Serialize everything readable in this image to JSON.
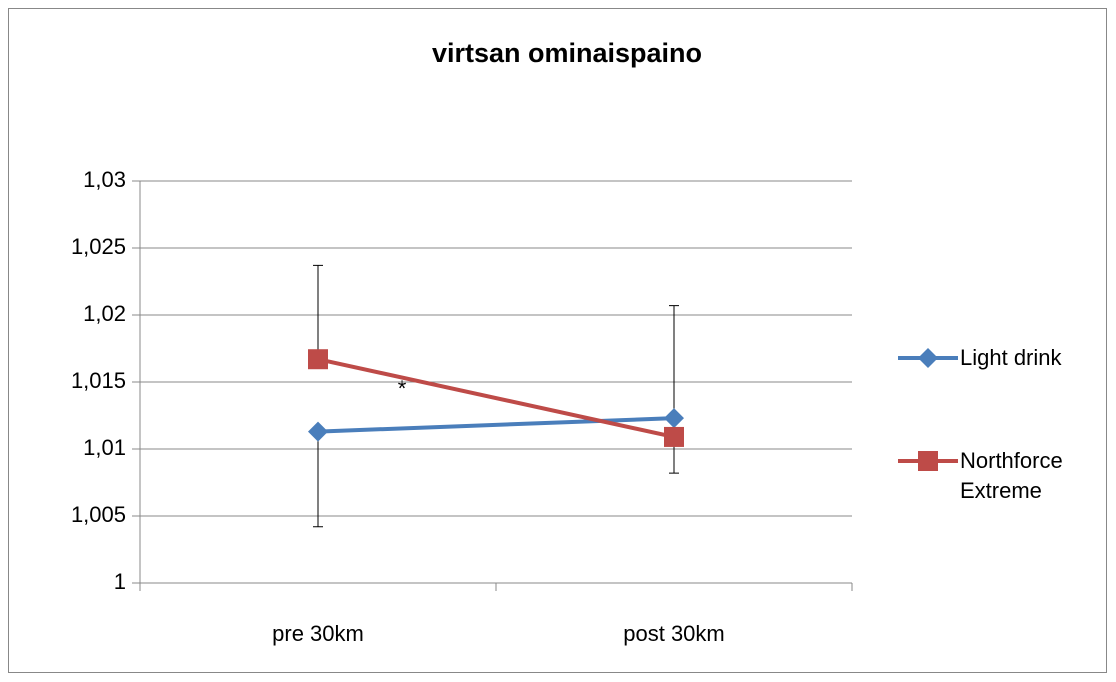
{
  "chart_data": {
    "type": "line",
    "title": "virtsan ominaispaino",
    "categories": [
      "pre 30km",
      "post 30km"
    ],
    "series": [
      {
        "name": "Light drink",
        "color": "#4a7ebb",
        "marker": "diamond",
        "values": [
          1.0113,
          1.0123
        ],
        "errors_minus": [
          0.0071,
          null
        ],
        "errors_plus": [
          null,
          0.0084
        ]
      },
      {
        "name": "Northforce Extreme",
        "color": "#be4b48",
        "marker": "square",
        "values": [
          1.0167,
          1.0109
        ],
        "errors_minus": [
          null,
          0.0027
        ],
        "errors_plus": [
          0.007,
          null
        ]
      }
    ],
    "annotations": [
      "*"
    ],
    "ylim": [
      1,
      1.03
    ],
    "yticks": [
      1,
      {
        "value": 1.005,
        "label": "1,005"
      },
      {
        "value": 1.01,
        "label": "1,01"
      },
      {
        "value": 1.015,
        "label": "1,015"
      },
      {
        "value": 1.02,
        "label": "1,02"
      },
      {
        "value": 1.025,
        "label": "1,025"
      },
      {
        "value": 1.03,
        "label": "1,03"
      }
    ],
    "grid": true,
    "legend": "right"
  }
}
